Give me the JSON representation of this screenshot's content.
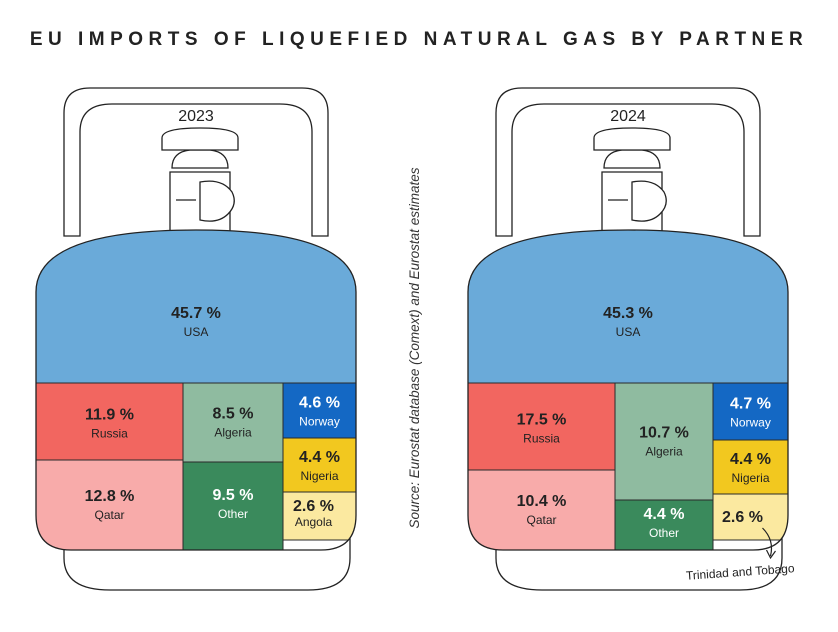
{
  "chart_data": {
    "type": "table",
    "title": "EU IMPORTS OF LIQUEFIED NATURAL GAS BY PARTNER",
    "source": "Source: Eurostat database (Comext) and Eurostat estimates",
    "unit": "%",
    "colors": {
      "USA": "#6aaad9",
      "Russia": "#f26660",
      "Qatar": "#f8abaa",
      "Algeria": "#8fbba0",
      "Other": "#3a8a5c",
      "Norway": "#1468c4",
      "Nigeria": "#f2c81f",
      "Angola": "#fbe9a0",
      "Trinidad and Tobago": "#fbe9a0"
    },
    "charts": [
      {
        "year": "2023",
        "segments": [
          {
            "partner": "USA",
            "value": 45.7,
            "value_label": "45.7 %"
          },
          {
            "partner": "Russia",
            "value": 11.9,
            "value_label": "11.9 %"
          },
          {
            "partner": "Qatar",
            "value": 12.8,
            "value_label": "12.8 %"
          },
          {
            "partner": "Algeria",
            "value": 8.5,
            "value_label": "8.5 %"
          },
          {
            "partner": "Other",
            "value": 9.5,
            "value_label": "9.5 %"
          },
          {
            "partner": "Norway",
            "value": 4.6,
            "value_label": "4.6 %"
          },
          {
            "partner": "Nigeria",
            "value": 4.4,
            "value_label": "4.4 %"
          },
          {
            "partner": "Angola",
            "value": 2.6,
            "value_label": "2.6 %"
          }
        ]
      },
      {
        "year": "2024",
        "segments": [
          {
            "partner": "USA",
            "value": 45.3,
            "value_label": "45.3 %"
          },
          {
            "partner": "Russia",
            "value": 17.5,
            "value_label": "17.5 %"
          },
          {
            "partner": "Qatar",
            "value": 10.4,
            "value_label": "10.4 %"
          },
          {
            "partner": "Algeria",
            "value": 10.7,
            "value_label": "10.7 %"
          },
          {
            "partner": "Other",
            "value": 4.4,
            "value_label": "4.4 %"
          },
          {
            "partner": "Norway",
            "value": 4.7,
            "value_label": "4.7 %"
          },
          {
            "partner": "Nigeria",
            "value": 4.4,
            "value_label": "4.4 %"
          },
          {
            "partner": "Trinidad and Tobago",
            "value": 2.6,
            "value_label": "2.6 %"
          }
        ]
      }
    ]
  }
}
